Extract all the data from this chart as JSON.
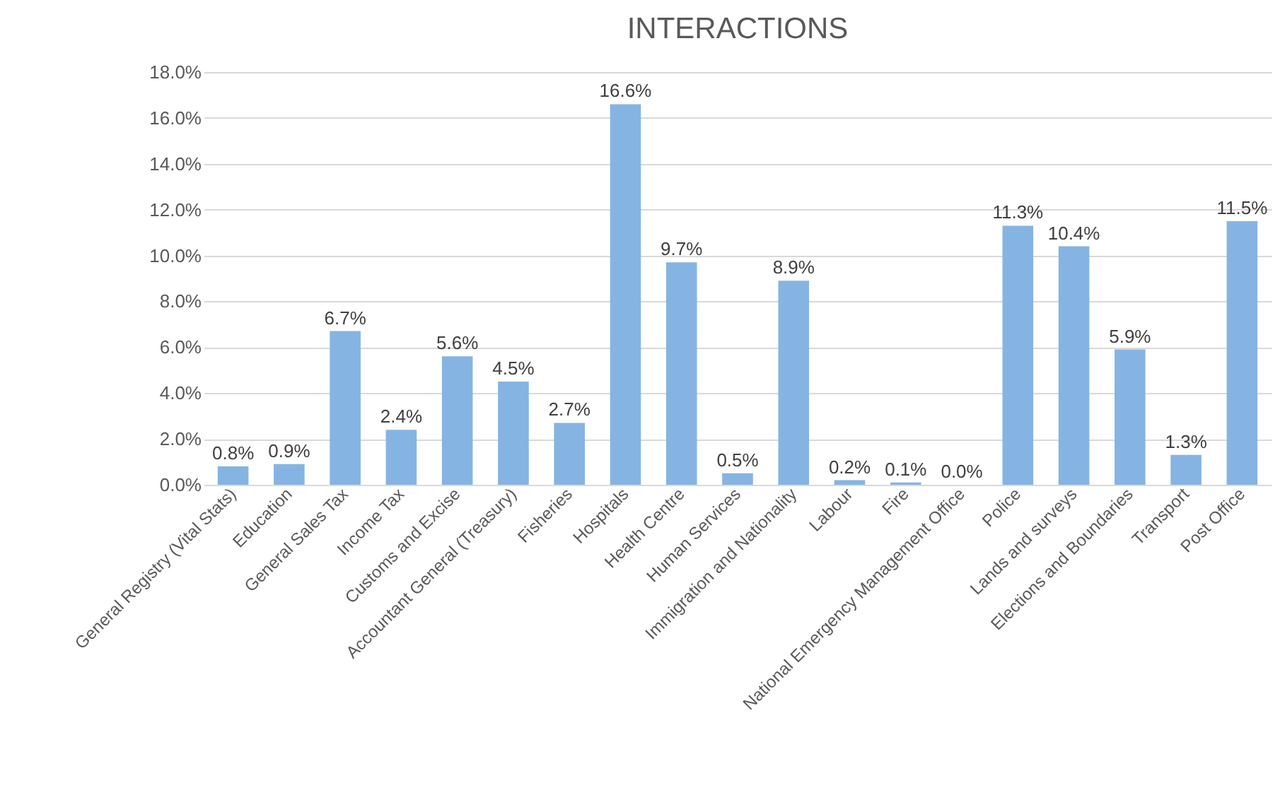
{
  "chart_data": {
    "type": "bar",
    "title": "INTERACTIONS",
    "categories": [
      "General Registry (Vital Stats)",
      "Education",
      "General Sales Tax",
      "Income Tax",
      "Customs and Excise",
      "Accountant General (Treasury)",
      "Fisheries",
      "Hospitals",
      "Health Centre",
      "Human Services",
      "Immigration and Nationality",
      "Labour",
      "Fire",
      "National Emergency Management Office",
      "Police",
      "Lands and surveys",
      "Elections and Boundaries",
      "Transport",
      "Post Office"
    ],
    "values": [
      0.8,
      0.9,
      6.7,
      2.4,
      5.6,
      4.5,
      2.7,
      16.6,
      9.7,
      0.5,
      8.9,
      0.2,
      0.1,
      0.0,
      11.3,
      10.4,
      5.9,
      1.3,
      11.5
    ],
    "value_labels": [
      "0.8%",
      "0.9%",
      "6.7%",
      "2.4%",
      "5.6%",
      "4.5%",
      "2.7%",
      "16.6%",
      "9.7%",
      "0.5%",
      "8.9%",
      "0.2%",
      "0.1%",
      "0.0%",
      "11.3%",
      "10.4%",
      "5.9%",
      "1.3%",
      "11.5%"
    ],
    "color": "#85b4e2",
    "ylim": [
      0,
      18
    ],
    "yticks": [
      {
        "value": 0,
        "label": "0.0%"
      },
      {
        "value": 2,
        "label": "2.0%"
      },
      {
        "value": 4,
        "label": "4.0%"
      },
      {
        "value": 6,
        "label": "6.0%"
      },
      {
        "value": 8,
        "label": "8.0%"
      },
      {
        "value": 10,
        "label": "10.0%"
      },
      {
        "value": 12,
        "label": "12.0%"
      },
      {
        "value": 14,
        "label": "14.0%"
      },
      {
        "value": 16,
        "label": "16.0%"
      },
      {
        "value": 18,
        "label": "18.0%"
      }
    ],
    "grid": "y"
  }
}
